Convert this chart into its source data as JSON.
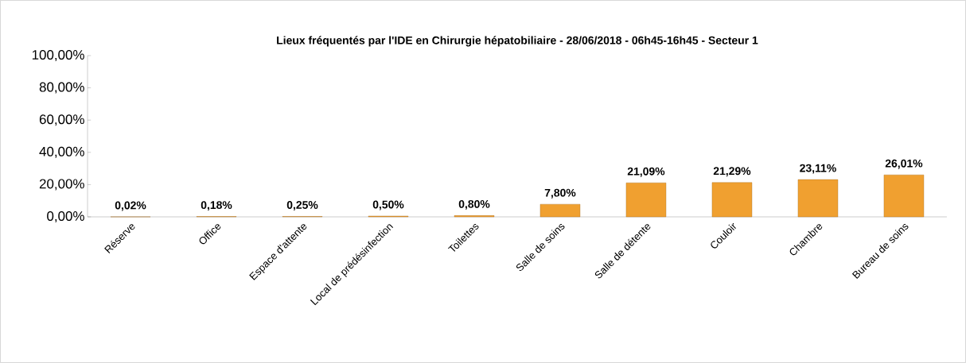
{
  "chart_data": {
    "type": "bar",
    "title": "Lieux fréquentés par l'IDE en Chirurgie hépatobiliaire - 28/06/2018 - 06h45-16h45 - Secteur 1",
    "categories": [
      "Réserve",
      "Office",
      "Espace d'attente",
      "Local de prédésinfection",
      "Toilettes",
      "Salle de soins",
      "Salle de détente",
      "Couloir",
      "Chambre",
      "Bureau de soins"
    ],
    "values": [
      0.02,
      0.18,
      0.25,
      0.5,
      0.8,
      7.8,
      21.09,
      21.29,
      23.11,
      26.01
    ],
    "value_labels": [
      "0,02%",
      "0,18%",
      "0,25%",
      "0,50%",
      "0,80%",
      "7,80%",
      "21,09%",
      "21,29%",
      "23,11%",
      "26,01%"
    ],
    "color": "#f0a030",
    "ylim": [
      0,
      100
    ],
    "yticks": [
      {
        "value": 0,
        "label": "0,00%"
      },
      {
        "value": 20,
        "label": "20,00%"
      },
      {
        "value": 40,
        "label": "40,00%"
      },
      {
        "value": 60,
        "label": "60,00%"
      },
      {
        "value": 80,
        "label": "80,00%"
      },
      {
        "value": 100,
        "label": "100,00%"
      }
    ],
    "grid": false
  }
}
